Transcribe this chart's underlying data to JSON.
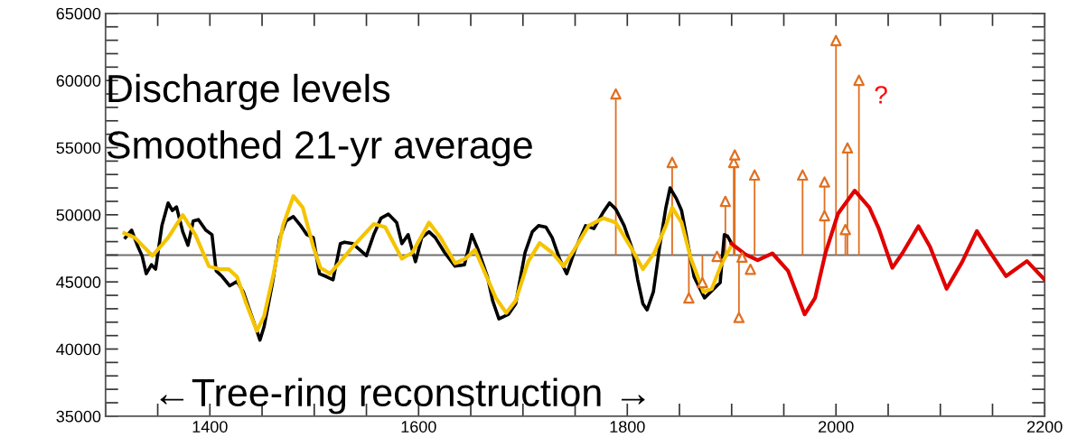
{
  "chart_data": {
    "type": "line",
    "xlim": [
      1300,
      2200
    ],
    "xticks": [
      {
        "value": 1300,
        "label": null
      },
      {
        "value": 1350,
        "label": null
      },
      1400,
      {
        "value": 1450,
        "label": null
      },
      1600,
      {
        "value": 1500,
        "label": null
      },
      {
        "value": 1550,
        "label": null
      },
      {
        "value": 1650,
        "label": null
      },
      {
        "value": 1700,
        "label": null
      },
      {
        "value": 1750,
        "label": null
      },
      1800,
      {
        "value": 1850,
        "label": null
      },
      {
        "value": 1900,
        "label": null
      },
      {
        "value": 1950,
        "label": null
      },
      2000,
      {
        "value": 2050,
        "label": null
      },
      {
        "value": 2100,
        "label": null
      },
      {
        "value": 2150,
        "label": null
      },
      2200
    ],
    "ylim": [
      35000,
      65000
    ],
    "yticks": [
      35000,
      {
        "value": 36000,
        "label": null
      },
      {
        "value": 37000,
        "label": null
      },
      {
        "value": 38000,
        "label": null
      },
      {
        "value": 39000,
        "label": null
      },
      40000,
      {
        "value": 41000,
        "label": null
      },
      {
        "value": 42000,
        "label": null
      },
      {
        "value": 43000,
        "label": null
      },
      {
        "value": 44000,
        "label": null
      },
      45000,
      {
        "value": 46000,
        "label": null
      },
      {
        "value": 47000,
        "label": null
      },
      {
        "value": 48000,
        "label": null
      },
      {
        "value": 49000,
        "label": null
      },
      50000,
      {
        "value": 51000,
        "label": null
      },
      {
        "value": 52000,
        "label": null
      },
      {
        "value": 53000,
        "label": null
      },
      {
        "value": 54000,
        "label": null
      },
      55000,
      {
        "value": 56000,
        "label": null
      },
      {
        "value": 57000,
        "label": null
      },
      {
        "value": 58000,
        "label": null
      },
      {
        "value": 59000,
        "label": null
      },
      60000,
      {
        "value": 61000,
        "label": null
      },
      {
        "value": 62000,
        "label": null
      },
      {
        "value": 63000,
        "label": null
      },
      {
        "value": 64000,
        "label": null
      },
      65000
    ],
    "grid": false,
    "legend": false,
    "marker": "none",
    "line_style": "solid",
    "ref_lines": [
      {
        "axis": "y",
        "value": 47000,
        "color": "#707070"
      }
    ],
    "annotations": [
      "Discharge levels",
      "Smoothed 21-yr average",
      "←Tree-ring reconstruction →",
      {
        "text": "?",
        "x": 2022,
        "y": 60020
      }
    ],
    "series": [
      {
        "color": "#000000",
        "x": [
          1319,
          1325,
          1331,
          1335,
          1339,
          1344,
          1348,
          1354,
          1360,
          1364,
          1368,
          1374,
          1379,
          1384,
          1389,
          1396,
          1402,
          1406,
          1412,
          1419,
          1426,
          1432,
          1439,
          1445,
          1448,
          1452,
          1460,
          1467,
          1473,
          1480,
          1487,
          1493,
          1499,
          1505,
          1512,
          1518,
          1525,
          1529,
          1537,
          1550,
          1557,
          1564,
          1571,
          1579,
          1584,
          1590,
          1597,
          1603,
          1610,
          1616,
          1625,
          1635,
          1644,
          1651,
          1657,
          1666,
          1671,
          1677,
          1686,
          1693,
          1702,
          1709,
          1715,
          1722,
          1728,
          1735,
          1742,
          1750,
          1760,
          1768,
          1777,
          1783,
          1789,
          1797,
          1805,
          1810,
          1815,
          1819,
          1825,
          1831,
          1837,
          1841,
          1847,
          1852,
          1858,
          1864,
          1874,
          1883,
          1889,
          1893,
          1896,
          1900
        ],
        "values": [
          48300,
          48860,
          47630,
          46950,
          45610,
          46280,
          45950,
          49190,
          50880,
          50320,
          50590,
          48740,
          47730,
          49530,
          49640,
          48860,
          48520,
          45830,
          45380,
          44710,
          45040,
          44260,
          42690,
          41350,
          40670,
          41680,
          44940,
          48300,
          49530,
          49870,
          49190,
          48520,
          48300,
          45610,
          45380,
          45160,
          47850,
          47960,
          47850,
          46950,
          48520,
          49750,
          50050,
          49420,
          47850,
          48520,
          46500,
          48300,
          48740,
          48300,
          47180,
          46170,
          46280,
          48520,
          47400,
          45380,
          43590,
          42250,
          42580,
          43360,
          47180,
          48740,
          49190,
          49080,
          48300,
          46730,
          45610,
          47400,
          49190,
          48970,
          50200,
          50880,
          50420,
          49190,
          47400,
          45160,
          43360,
          42920,
          44260,
          47630,
          50540,
          52000,
          51210,
          50320,
          47850,
          45380,
          43810,
          44490,
          44940,
          48520,
          48410,
          47850
        ]
      },
      {
        "color": "#f5c400",
        "x": [
          1318,
          1328,
          1345,
          1360,
          1374,
          1386,
          1399,
          1409,
          1418,
          1426,
          1435,
          1445,
          1452,
          1461,
          1470,
          1480,
          1489,
          1499,
          1506,
          1515,
          1525,
          1537,
          1557,
          1568,
          1584,
          1594,
          1610,
          1621,
          1635,
          1645,
          1654,
          1664,
          1674,
          1684,
          1693,
          1705,
          1716,
          1728,
          1739,
          1751,
          1763,
          1777,
          1789,
          1803,
          1815,
          1826,
          1837,
          1843,
          1852,
          1861,
          1873,
          1881,
          1890,
          1900
        ],
        "values": [
          48640,
          48300,
          46950,
          48300,
          49980,
          48520,
          46170,
          45950,
          45950,
          45380,
          43360,
          41350,
          42470,
          45610,
          49190,
          51390,
          50540,
          47630,
          46050,
          45610,
          46500,
          47630,
          49310,
          49080,
          46730,
          47180,
          49420,
          48300,
          46390,
          46730,
          47400,
          45610,
          43810,
          42690,
          43590,
          46500,
          47900,
          47180,
          46170,
          47630,
          49190,
          49750,
          49420,
          47630,
          45950,
          47180,
          49190,
          50540,
          49420,
          46730,
          44260,
          44490,
          46280,
          47740
        ]
      },
      {
        "color": "#e00000",
        "x": [
          1900,
          1913,
          1925,
          1939,
          1954,
          1970,
          1980,
          1990,
          2002,
          2018,
          2032,
          2041,
          2054,
          2064,
          2079,
          2090,
          2106,
          2121,
          2135,
          2148,
          2163,
          2183,
          2200
        ],
        "values": [
          47850,
          47060,
          46620,
          47130,
          45830,
          42580,
          43810,
          47180,
          50090,
          51800,
          50540,
          48970,
          46050,
          47180,
          49150,
          47630,
          44490,
          46500,
          48790,
          47180,
          45430,
          46550,
          45160
        ]
      },
      {
        "type": "scatter",
        "color": "#e07020",
        "marker": "triangle",
        "errors": [
          [
            47000,
            59000
          ],
          [
            47000,
            53900
          ],
          [
            43800,
            47000
          ],
          [
            44950,
            47000
          ],
          null,
          [
            47000,
            51000
          ],
          [
            47000,
            53900
          ],
          [
            47000,
            54460
          ],
          [
            42350,
            47000
          ],
          null,
          null,
          [
            47000,
            52960
          ],
          [
            47000,
            52960
          ],
          [
            47000,
            52440
          ],
          null,
          [
            47000,
            62980
          ],
          [
            47000,
            48900
          ],
          [
            47000,
            54980
          ],
          [
            47000,
            60020
          ]
        ],
        "x": [
          1789,
          1843,
          1859,
          1872,
          1886,
          1894,
          1902,
          1903,
          1907,
          1910,
          1918,
          1922,
          1968,
          1989,
          1989,
          2000,
          2009,
          2011,
          2022
        ],
        "values": [
          59000,
          53900,
          43800,
          44950,
          46900,
          51000,
          53900,
          54460,
          42350,
          46840,
          45940,
          52960,
          52960,
          52440,
          49930,
          62980,
          48900,
          54980,
          60020
        ]
      }
    ]
  }
}
